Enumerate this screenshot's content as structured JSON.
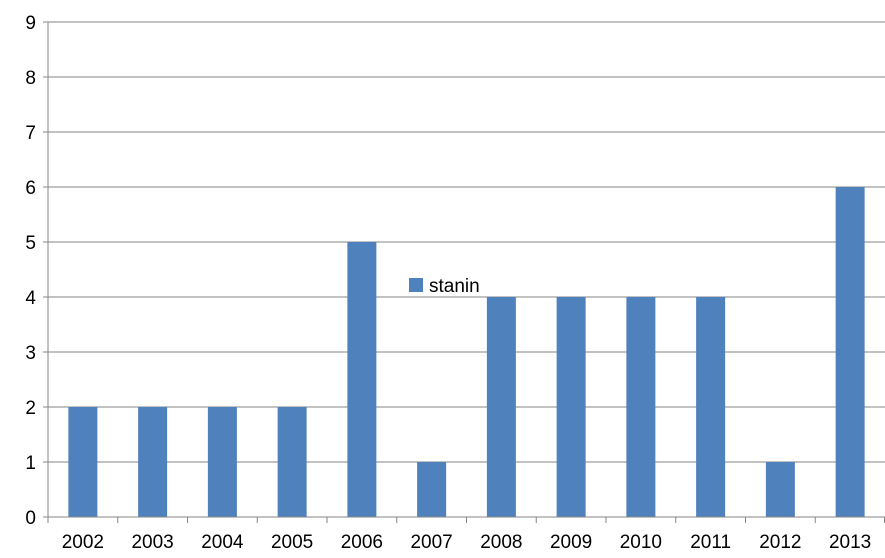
{
  "chart_data": {
    "type": "bar",
    "categories": [
      "2002",
      "2003",
      "2004",
      "2005",
      "2006",
      "2007",
      "2008",
      "2009",
      "2010",
      "2011",
      "2012",
      "2013"
    ],
    "series": [
      {
        "name": "stanin",
        "values": [
          2,
          2,
          2,
          2,
          5,
          1,
          4,
          4,
          4,
          4,
          1,
          6
        ],
        "color": "#4f81bd"
      }
    ],
    "ylim": [
      0,
      9
    ],
    "yticks": [
      "0",
      "1",
      "2",
      "3",
      "4",
      "5",
      "6",
      "7",
      "8",
      "9"
    ],
    "grid": true,
    "gridColor": "#868686",
    "legend_placement": "center",
    "title": "",
    "xlabel": "",
    "ylabel": ""
  }
}
